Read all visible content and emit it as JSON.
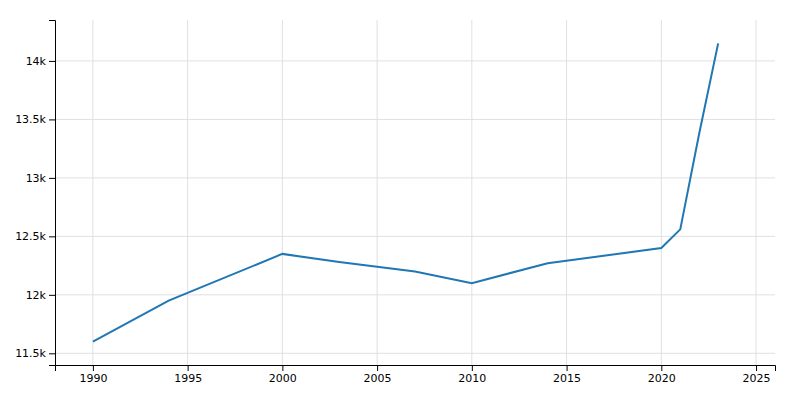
{
  "chart_data": {
    "type": "line",
    "x": [
      1990,
      1994,
      2000,
      2003,
      2007,
      2010,
      2014,
      2020,
      2021,
      2022,
      2023
    ],
    "values": [
      11600,
      11950,
      12350,
      12280,
      12200,
      12100,
      12270,
      12400,
      12560,
      13380,
      14150
    ],
    "xlim": [
      1988,
      2026
    ],
    "ylim": [
      11400,
      14350
    ],
    "xticks": [
      1990,
      1995,
      2000,
      2005,
      2010,
      2015,
      2020,
      2025
    ],
    "yticks": [
      {
        "value": 11500,
        "label": "11.5k"
      },
      {
        "value": 12000,
        "label": "12k"
      },
      {
        "value": 12500,
        "label": "12.5k"
      },
      {
        "value": 13000,
        "label": "13k"
      },
      {
        "value": 13500,
        "label": "13.5k"
      },
      {
        "value": 14000,
        "label": "14k"
      }
    ],
    "grid": true
  }
}
